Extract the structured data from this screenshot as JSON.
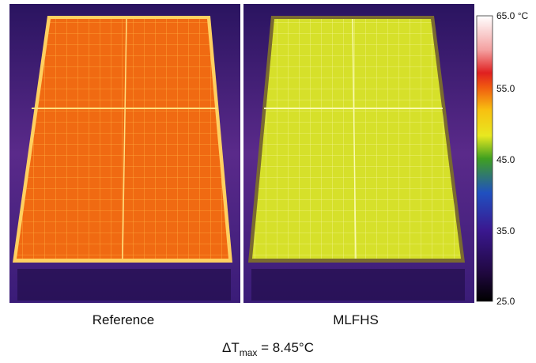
{
  "images": [
    {
      "label": "Reference"
    },
    {
      "label": "MLFHS"
    }
  ],
  "colorbar": {
    "ticks": [
      "65.0 °C",
      "55.0",
      "45.0",
      "35.0",
      "25.0"
    ]
  },
  "caption": {
    "symbol": "ΔT",
    "subscript": "max",
    "rest": " = 8.45°C"
  }
}
